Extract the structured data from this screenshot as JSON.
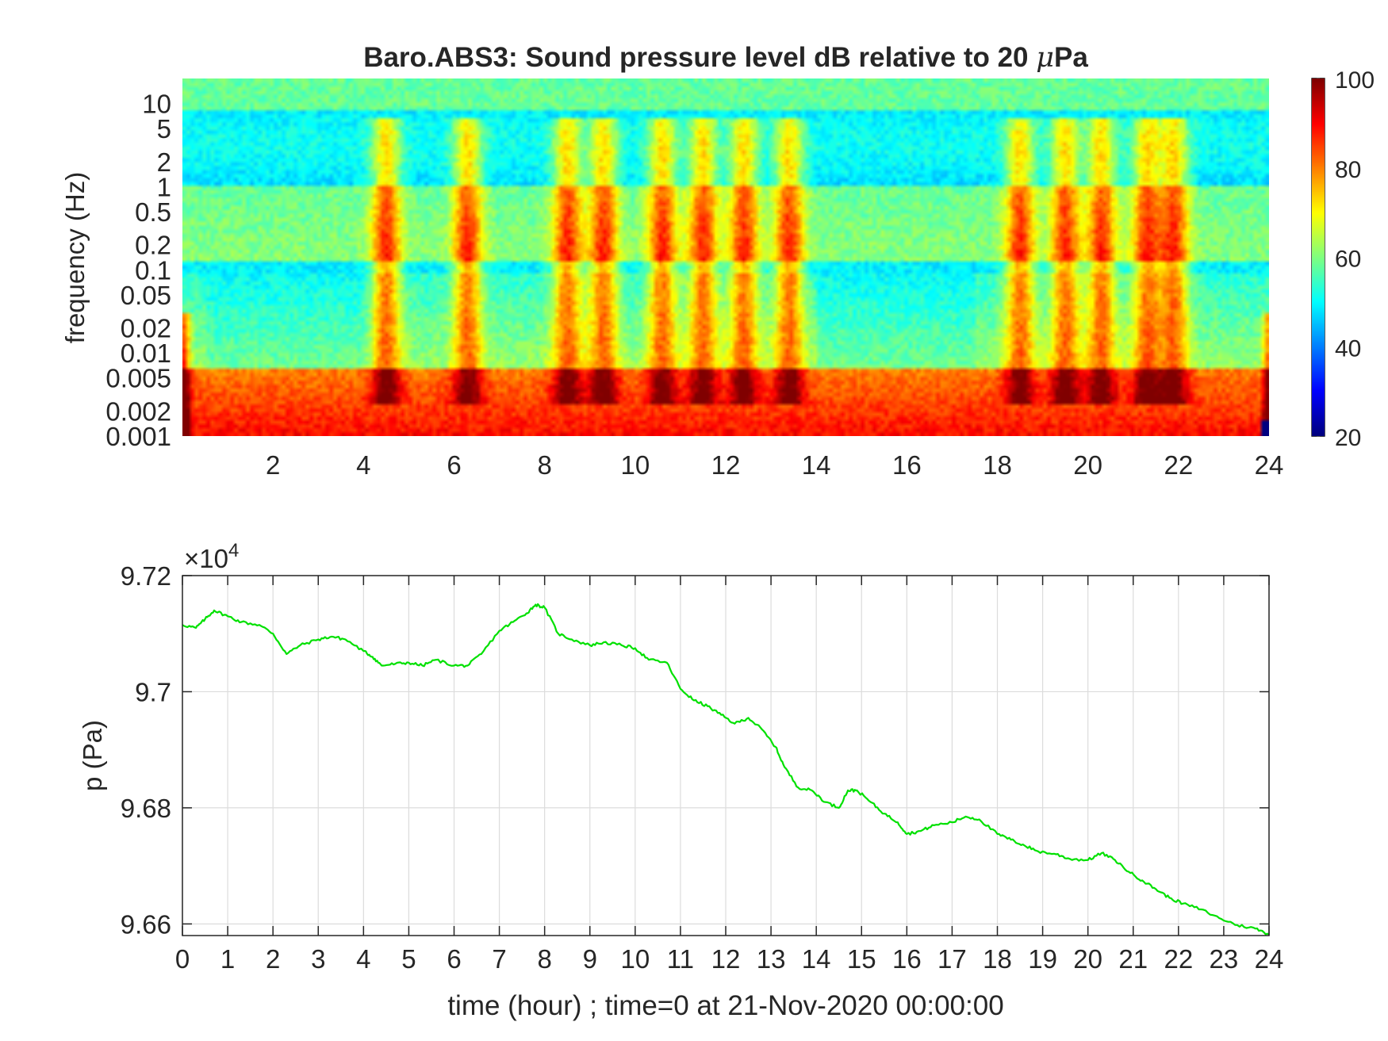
{
  "chart_data": [
    {
      "type": "heatmap",
      "title": "Baro.ABS3: Sound pressure level dB relative to 20 μPa",
      "title_prefix": "Baro.ABS3: Sound pressure level dB relative to 20 ",
      "title_mu": "μ",
      "title_suffix": "Pa",
      "xlabel": "",
      "ylabel": "frequency (Hz)",
      "xlim": [
        0,
        24
      ],
      "ylim": [
        0.001,
        20
      ],
      "yscale": "log",
      "x_ticks": [
        "2",
        "4",
        "6",
        "8",
        "10",
        "12",
        "14",
        "16",
        "18",
        "20",
        "22",
        "24"
      ],
      "y_ticks": [
        "0.001",
        "0.002",
        "0.005",
        "0.01",
        "0.02",
        "0.05",
        "0.1",
        "0.2",
        "0.5",
        "1",
        "2",
        "5",
        "10"
      ],
      "colormap": "jet",
      "colorbar": {
        "range": [
          20,
          100
        ],
        "ticks": [
          "20",
          "40",
          "60",
          "80",
          "100"
        ],
        "placement": "right"
      },
      "activity_bursts_hours": [
        4.5,
        6.3,
        8.5,
        9.3,
        10.6,
        11.5,
        12.4,
        13.4,
        18.5,
        19.5,
        20.3,
        21.3,
        21.9
      ],
      "quiet_periods_hours": [
        [
          0.5,
          4.2
        ],
        [
          14.0,
          17.5
        ]
      ]
    },
    {
      "type": "line",
      "title": "",
      "xlabel": "time (hour) ; time=0 at 21-Nov-2020 00:00:00",
      "ylabel": "p (Pa)",
      "xlim": [
        0,
        24
      ],
      "ylim": [
        96580,
        97200
      ],
      "grid": true,
      "y_exponent_label": "×10",
      "y_exponent_power": "4",
      "x_ticks": [
        "0",
        "1",
        "2",
        "3",
        "4",
        "5",
        "6",
        "7",
        "8",
        "9",
        "10",
        "11",
        "12",
        "13",
        "14",
        "15",
        "16",
        "17",
        "18",
        "19",
        "20",
        "21",
        "22",
        "23",
        "24"
      ],
      "y_ticks": [
        "9.66",
        "9.68",
        "9.7",
        "9.72"
      ],
      "line_color": "#00e000",
      "series": [
        {
          "x": [
            0,
            0.3,
            0.5,
            0.7,
            1.0,
            1.3,
            1.7,
            2.0,
            2.3,
            2.6,
            3.0,
            3.3,
            3.6,
            4.0,
            4.2,
            4.4,
            4.7,
            5.0,
            5.3,
            5.6,
            6.0,
            6.3,
            6.6,
            7.0,
            7.3,
            7.6,
            7.8,
            8.0,
            8.3,
            8.6,
            9.0,
            9.3,
            9.7,
            10.0,
            10.3,
            10.7,
            11.0,
            11.3,
            11.6,
            11.9,
            12.2,
            12.5,
            12.8,
            13.1,
            13.3,
            13.6,
            13.9,
            14.2,
            14.5,
            14.7,
            14.9,
            15.2,
            15.5,
            15.8,
            16.0,
            16.3,
            16.6,
            17.0,
            17.3,
            17.6,
            18.0,
            18.3,
            18.6,
            18.9,
            19.3,
            19.6,
            20.0,
            20.3,
            20.6,
            20.9,
            21.2,
            21.5,
            21.8,
            22.1,
            22.5,
            22.9,
            23.3,
            23.7,
            24.0
          ],
          "y": [
            97115,
            97110,
            97125,
            97140,
            97130,
            97120,
            97115,
            97100,
            97065,
            97080,
            97090,
            97095,
            97090,
            97070,
            97060,
            97045,
            97048,
            97050,
            97045,
            97055,
            97045,
            97045,
            97065,
            97105,
            97120,
            97135,
            97150,
            97145,
            97100,
            97090,
            97080,
            97085,
            97080,
            97075,
            97055,
            97050,
            97005,
            96985,
            96975,
            96960,
            96945,
            96955,
            96935,
            96905,
            96870,
            96835,
            96830,
            96810,
            96800,
            96830,
            96830,
            96810,
            96790,
            96775,
            96755,
            96760,
            96770,
            96775,
            96785,
            96780,
            96755,
            96745,
            96735,
            96725,
            96720,
            96712,
            96710,
            96722,
            96710,
            96690,
            96675,
            96660,
            96645,
            96635,
            96625,
            96610,
            96598,
            96592,
            96582
          ]
        }
      ]
    }
  ]
}
